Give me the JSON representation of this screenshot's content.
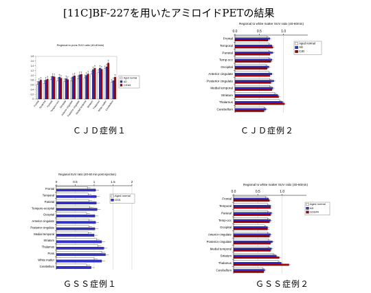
{
  "title": "[11C]BF-227を用いたアミロイドPETの結果",
  "captions": [
    "ＣＪＤ症例１",
    "ＣＪＤ症例２",
    "ＧＳＳ症例１",
    "ＧＳＳ症例２"
  ],
  "colors": {
    "aged_normal": "#ffffff",
    "ad": "#3333cc",
    "patient": "#b00000",
    "outline": "#000000"
  },
  "chart_data": [
    {
      "type": "bar",
      "orientation": "vertical",
      "title": "Regional to pons SUV ratio (40-60min)",
      "ylim": [
        0,
        1.8
      ],
      "yticks": [
        "0",
        "0.2",
        "0.4",
        "0.6",
        "0.8",
        "1.0",
        "1.2",
        "1.4",
        "1.6",
        "1.8"
      ],
      "categories": [
        "Frontal",
        "Temporal",
        "Parietal",
        "Temporo-occ",
        "Occipital",
        "Anterior cingulate",
        "Posterior cingulate",
        "Medial temporal",
        "Striatum",
        "Thalamus",
        "White matter",
        "Cerebellum"
      ],
      "series": [
        {
          "name": "Aged normal",
          "values": [
            0.62,
            0.66,
            0.82,
            0.78,
            0.74,
            0.78,
            0.86,
            0.9,
            1.05,
            1.12,
            1.28,
            0.72
          ]
        },
        {
          "name": "AD",
          "values": [
            0.74,
            0.8,
            0.96,
            0.92,
            0.86,
            0.94,
            1.02,
            1.0,
            1.24,
            1.3,
            1.36,
            0.78
          ]
        },
        {
          "name": "CJD#4",
          "values": [
            0.8,
            0.84,
            0.94,
            0.88,
            0.82,
            0.98,
            1.04,
            1.06,
            1.3,
            1.26,
            1.52,
            0.92
          ]
        }
      ]
    },
    {
      "type": "bar",
      "orientation": "horizontal",
      "title": "Regional to white matter SUV ratio (40-60min)",
      "xlim": [
        0,
        1.5
      ],
      "xticks": [
        "0.0",
        "0.5",
        "1.0"
      ],
      "categories": [
        "Frontal",
        "Temporal",
        "Parietal",
        "Temp-occ",
        "Occipital",
        "Anterior cingulate",
        "Posterior cingulate",
        "Medial temporal",
        "Striatum",
        "Thalamus",
        "Cerebellum"
      ],
      "series": [
        {
          "name": "Aged normal",
          "values": [
            0.66,
            0.7,
            0.7,
            0.7,
            0.64,
            0.7,
            0.72,
            0.72,
            0.82,
            0.92,
            0.6
          ]
        },
        {
          "name": "AD",
          "values": [
            0.72,
            0.76,
            0.78,
            0.76,
            0.7,
            0.76,
            0.8,
            0.78,
            0.88,
            0.98,
            0.64
          ]
        },
        {
          "name": "CJD",
          "values": [
            0.68,
            0.78,
            0.72,
            0.74,
            0.66,
            0.72,
            0.74,
            0.76,
            0.9,
            1.02,
            0.6
          ]
        }
      ]
    },
    {
      "type": "bar",
      "orientation": "horizontal",
      "title": "Regional SUV ratio (40-60 min post injection)",
      "xlim": [
        0,
        2
      ],
      "xticks": [
        "0",
        "0.5",
        "1",
        "1.5",
        "2"
      ],
      "categories": [
        "Frontal",
        "Temporal",
        "Parietal",
        "Temporo-occipital",
        "Occipital",
        "Anterior cingulate",
        "Posterior cingulate",
        "Medial temporal",
        "Striatum",
        "Thalamus",
        "Pons",
        "White matter",
        "Cerebellum"
      ],
      "series": [
        {
          "name": "Aged normal",
          "values": [
            0.82,
            0.84,
            0.86,
            0.88,
            0.8,
            0.86,
            0.86,
            0.84,
            1.06,
            1.1,
            1.2,
            1.0,
            0.8
          ]
        },
        {
          "name": "GSS",
          "values": [
            1.04,
            1.06,
            1.06,
            1.08,
            1.02,
            1.04,
            1.02,
            1.0,
            1.2,
            1.26,
            1.3,
            1.2,
            0.92
          ]
        }
      ]
    },
    {
      "type": "bar",
      "orientation": "horizontal",
      "title": "Regional to white matter SUV ratio (40-60min)",
      "xlim": [
        0,
        1.5
      ],
      "xticks": [
        "0.0",
        "0.5",
        "1.0"
      ],
      "categories": [
        "Frontal",
        "Temporal",
        "Parietal",
        "Temp-occ",
        "Occipital",
        "Anterior cingulate",
        "Posterior cingulate",
        "Medial temporal",
        "Striatum",
        "Thalamus",
        "Cerebellum"
      ],
      "series": [
        {
          "name": "Aged normal",
          "values": [
            0.66,
            0.7,
            0.7,
            0.7,
            0.64,
            0.7,
            0.72,
            0.72,
            0.82,
            0.92,
            0.6
          ]
        },
        {
          "name": "AD",
          "values": [
            0.72,
            0.76,
            0.78,
            0.76,
            0.7,
            0.76,
            0.8,
            0.78,
            0.88,
            0.98,
            0.64
          ]
        },
        {
          "name": "GSS#4",
          "values": [
            0.74,
            0.76,
            0.76,
            0.74,
            0.7,
            0.74,
            0.76,
            0.76,
            0.94,
            1.14,
            0.62
          ]
        }
      ]
    }
  ]
}
